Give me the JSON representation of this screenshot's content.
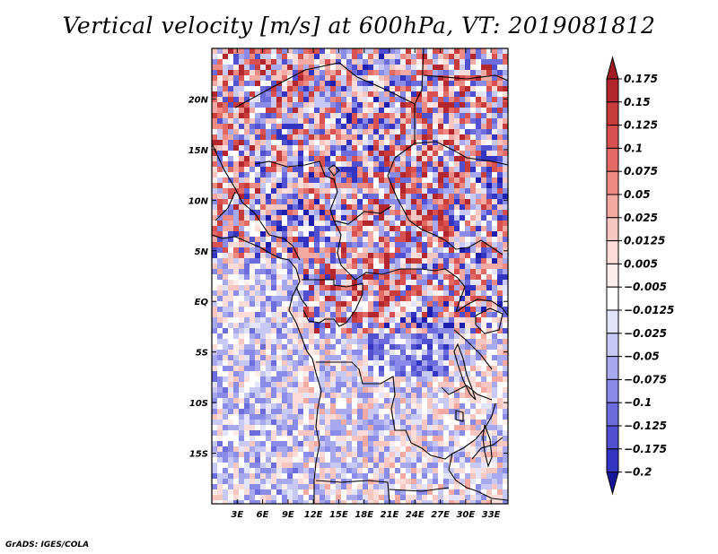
{
  "title": "Vertical velocity [m/s] at 600hPa, VT: 2019081812",
  "credit": "GrADS: IGES/COLA",
  "map": {
    "variable": "Vertical velocity",
    "units": "m/s",
    "level": "600hPa",
    "valid_time": "2019081812",
    "lon_range": [
      0,
      35
    ],
    "lat_range": [
      -20,
      25
    ],
    "x_ticks": [
      {
        "value": 3,
        "label": "3E"
      },
      {
        "value": 6,
        "label": "6E"
      },
      {
        "value": 9,
        "label": "9E"
      },
      {
        "value": 12,
        "label": "12E"
      },
      {
        "value": 15,
        "label": "15E"
      },
      {
        "value": 18,
        "label": "18E"
      },
      {
        "value": 21,
        "label": "21E"
      },
      {
        "value": 24,
        "label": "24E"
      },
      {
        "value": 27,
        "label": "27E"
      },
      {
        "value": 30,
        "label": "30E"
      },
      {
        "value": 33,
        "label": "33E"
      }
    ],
    "y_ticks": [
      {
        "value": 20,
        "label": "20N"
      },
      {
        "value": 15,
        "label": "15N"
      },
      {
        "value": 10,
        "label": "10N"
      },
      {
        "value": 5,
        "label": "5N"
      },
      {
        "value": 0,
        "label": "EQ"
      },
      {
        "value": -5,
        "label": "5S"
      },
      {
        "value": -10,
        "label": "10S"
      },
      {
        "value": -15,
        "label": "15S"
      }
    ]
  },
  "colorbar": {
    "levels": [
      {
        "label": "0.175",
        "color": "#b3262e"
      },
      {
        "label": "0.15",
        "color": "#c83c3c"
      },
      {
        "label": "0.125",
        "color": "#d85050"
      },
      {
        "label": "0.1",
        "color": "#e46a66"
      },
      {
        "label": "0.075",
        "color": "#ed8a84"
      },
      {
        "label": "0.05",
        "color": "#f4a9a3"
      },
      {
        "label": "0.025",
        "color": "#f8c6c0"
      },
      {
        "label": "0.0125",
        "color": "#fbdcd8"
      },
      {
        "label": "0.005",
        "color": "#fdeeec"
      },
      {
        "label": "−0.005",
        "color": "#ffffff"
      },
      {
        "label": "−0.0125",
        "color": "#e3e3fa"
      },
      {
        "label": "−0.025",
        "color": "#c8c8f5"
      },
      {
        "label": "−0.05",
        "color": "#a8a8ef"
      },
      {
        "label": "−0.075",
        "color": "#8a8ae8"
      },
      {
        "label": "−0.1",
        "color": "#6c6cdd"
      },
      {
        "label": "−0.125",
        "color": "#5050d0"
      },
      {
        "label": "−0.175",
        "color": "#3434c2"
      },
      {
        "label": "−0.2",
        "color": "#1e1eae"
      }
    ],
    "top_color": "#a01c22",
    "bottom_color": "#16169a"
  }
}
